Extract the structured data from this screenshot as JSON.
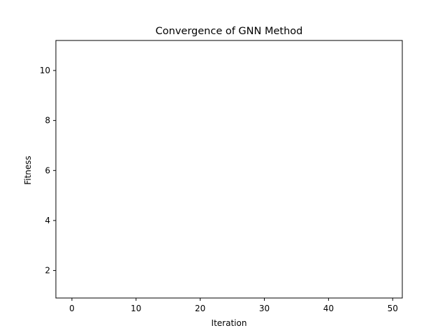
{
  "chart_data": {
    "type": "line",
    "title": "Convergence of GNN Method",
    "xlabel": "Iteration",
    "ylabel": "Fitness",
    "xlim": [
      -2.5,
      51.5
    ],
    "ylim": [
      0.9,
      11.2
    ],
    "xticks": [
      0,
      10,
      20,
      30,
      40,
      50
    ],
    "yticks": [
      2,
      4,
      6,
      8,
      10
    ],
    "grid": false,
    "legend": "none",
    "series": []
  }
}
